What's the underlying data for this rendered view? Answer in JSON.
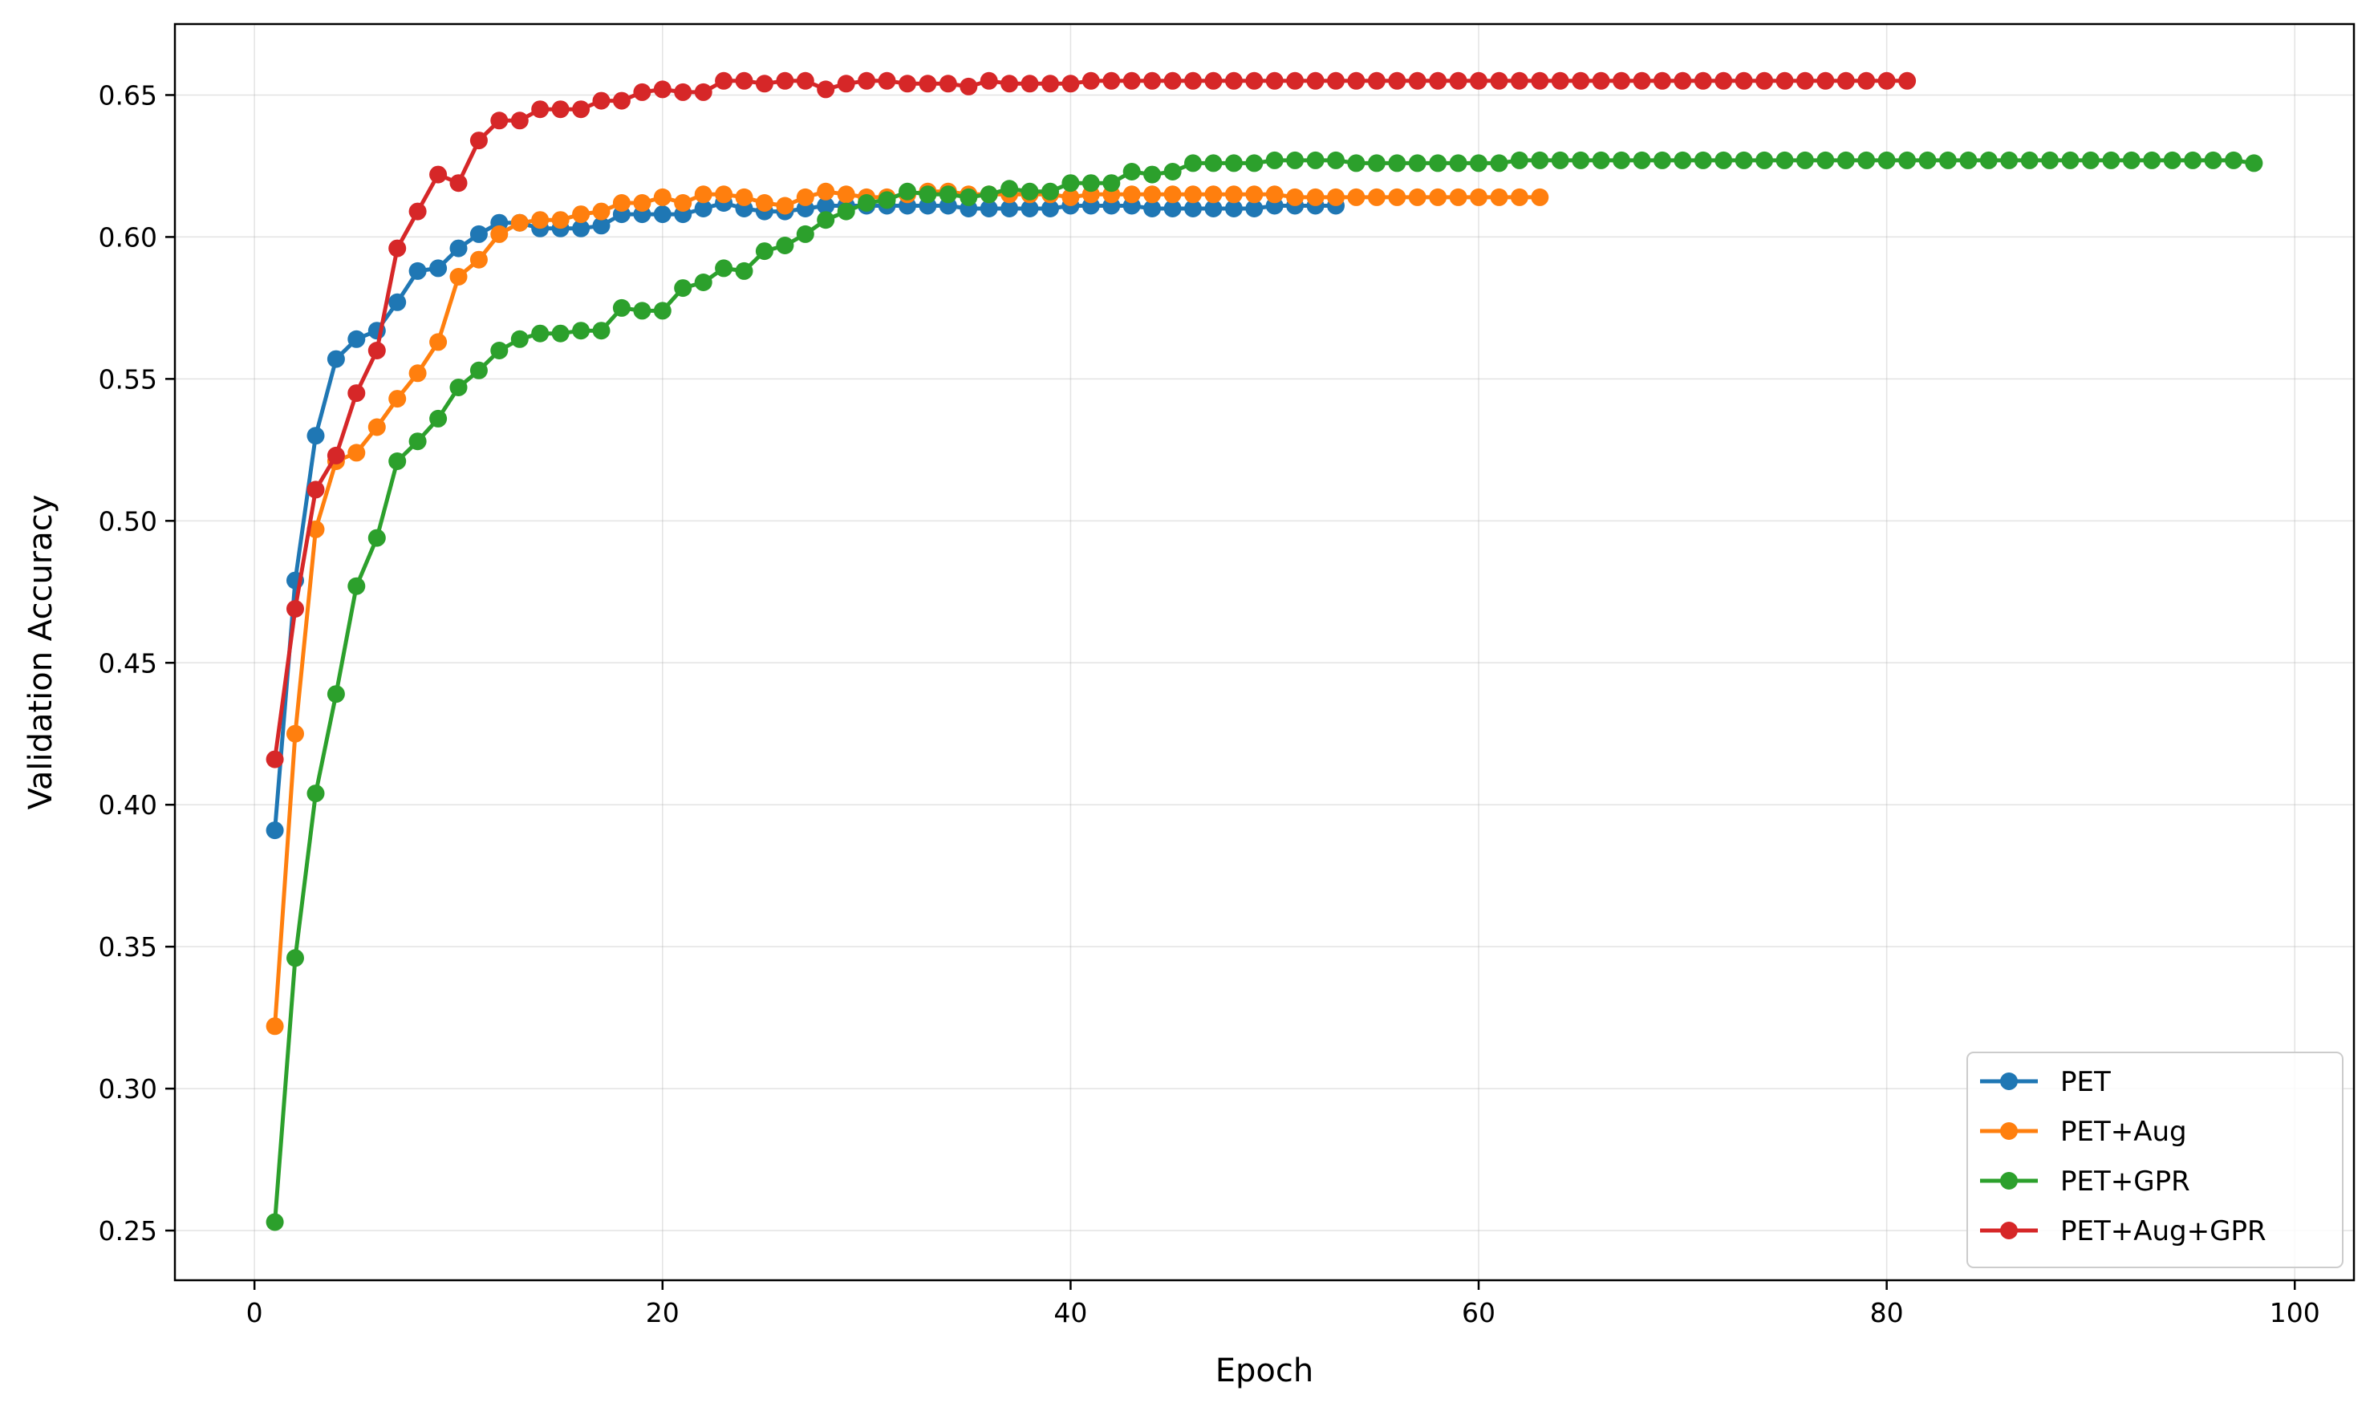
{
  "chart_data": {
    "type": "line",
    "title": "",
    "xlabel": "Epoch",
    "ylabel": "Validation Accuracy",
    "xlim": [
      -3.9,
      102.9
    ],
    "ylim": [
      0.2325,
      0.675
    ],
    "xticks": [
      0,
      20,
      40,
      60,
      80,
      100
    ],
    "yticks": [
      0.25,
      0.3,
      0.35,
      0.4,
      0.45,
      0.5,
      0.55,
      0.6,
      0.65
    ],
    "xtick_labels": [
      "0",
      "20",
      "40",
      "60",
      "80",
      "100"
    ],
    "ytick_labels": [
      "0.25",
      "0.30",
      "0.35",
      "0.40",
      "0.45",
      "0.50",
      "0.55",
      "0.60",
      "0.65"
    ],
    "grid": true,
    "legend_position": "lower-right",
    "series": [
      {
        "name": "PET",
        "color": "#1f77b4",
        "values": [
          0.391,
          0.479,
          0.53,
          0.557,
          0.564,
          0.567,
          0.577,
          0.588,
          0.589,
          0.596,
          0.601,
          0.605,
          0.605,
          0.603,
          0.603,
          0.603,
          0.604,
          0.608,
          0.608,
          0.608,
          0.608,
          0.61,
          0.612,
          0.61,
          0.609,
          0.609,
          0.61,
          0.611,
          0.611,
          0.611,
          0.611,
          0.611,
          0.611,
          0.611,
          0.61,
          0.61,
          0.61,
          0.61,
          0.61,
          0.611,
          0.611,
          0.611,
          0.611,
          0.61,
          0.61,
          0.61,
          0.61,
          0.61,
          0.61,
          0.611,
          0.611,
          0.611,
          0.611
        ]
      },
      {
        "name": "PET+Aug",
        "color": "#ff7f0e",
        "values": [
          0.322,
          0.425,
          0.497,
          0.521,
          0.524,
          0.533,
          0.543,
          0.552,
          0.563,
          0.586,
          0.592,
          0.601,
          0.605,
          0.606,
          0.606,
          0.608,
          0.609,
          0.612,
          0.612,
          0.614,
          0.612,
          0.615,
          0.615,
          0.614,
          0.612,
          0.611,
          0.614,
          0.616,
          0.615,
          0.614,
          0.614,
          0.615,
          0.616,
          0.616,
          0.615,
          0.615,
          0.615,
          0.615,
          0.615,
          0.614,
          0.615,
          0.615,
          0.615,
          0.615,
          0.615,
          0.615,
          0.615,
          0.615,
          0.615,
          0.615,
          0.614,
          0.614,
          0.614,
          0.614,
          0.614,
          0.614,
          0.614,
          0.614,
          0.614,
          0.614,
          0.614,
          0.614,
          0.614
        ]
      },
      {
        "name": "PET+GPR",
        "color": "#2ca02c",
        "values": [
          0.253,
          0.346,
          0.404,
          0.439,
          0.477,
          0.494,
          0.521,
          0.528,
          0.536,
          0.547,
          0.553,
          0.56,
          0.564,
          0.566,
          0.566,
          0.567,
          0.567,
          0.575,
          0.574,
          0.574,
          0.582,
          0.584,
          0.589,
          0.588,
          0.595,
          0.597,
          0.601,
          0.606,
          0.609,
          0.612,
          0.613,
          0.616,
          0.615,
          0.615,
          0.614,
          0.615,
          0.617,
          0.616,
          0.616,
          0.619,
          0.619,
          0.619,
          0.623,
          0.622,
          0.623,
          0.626,
          0.626,
          0.626,
          0.626,
          0.627,
          0.627,
          0.627,
          0.627,
          0.626,
          0.626,
          0.626,
          0.626,
          0.626,
          0.626,
          0.626,
          0.626,
          0.627,
          0.627,
          0.627,
          0.627,
          0.627,
          0.627,
          0.627,
          0.627,
          0.627,
          0.627,
          0.627,
          0.627,
          0.627,
          0.627,
          0.627,
          0.627,
          0.627,
          0.627,
          0.627,
          0.627,
          0.627,
          0.627,
          0.627,
          0.627,
          0.627,
          0.627,
          0.627,
          0.627,
          0.627,
          0.627,
          0.627,
          0.627,
          0.627,
          0.627,
          0.627,
          0.627,
          0.626
        ]
      },
      {
        "name": "PET+Aug+GPR",
        "color": "#d62728",
        "values": [
          0.416,
          0.469,
          0.511,
          0.523,
          0.545,
          0.56,
          0.596,
          0.609,
          0.622,
          0.619,
          0.634,
          0.641,
          0.641,
          0.645,
          0.645,
          0.645,
          0.648,
          0.648,
          0.651,
          0.652,
          0.651,
          0.651,
          0.655,
          0.655,
          0.654,
          0.655,
          0.655,
          0.652,
          0.654,
          0.655,
          0.655,
          0.654,
          0.654,
          0.654,
          0.653,
          0.655,
          0.654,
          0.654,
          0.654,
          0.654,
          0.655,
          0.655,
          0.655,
          0.655,
          0.655,
          0.655,
          0.655,
          0.655,
          0.655,
          0.655,
          0.655,
          0.655,
          0.655,
          0.655,
          0.655,
          0.655,
          0.655,
          0.655,
          0.655,
          0.655,
          0.655,
          0.655,
          0.655,
          0.655,
          0.655,
          0.655,
          0.655,
          0.655,
          0.655,
          0.655,
          0.655,
          0.655,
          0.655,
          0.655,
          0.655,
          0.655,
          0.655,
          0.655,
          0.655,
          0.655,
          0.655
        ]
      }
    ]
  }
}
